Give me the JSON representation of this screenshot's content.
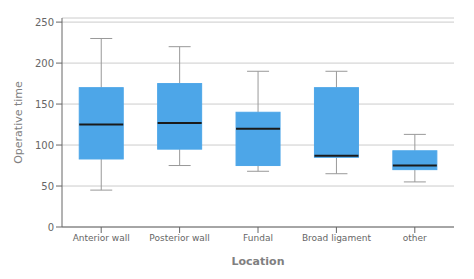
{
  "chart_data": {
    "type": "box",
    "categories": [
      "Anterior wall",
      "Posterior wall",
      "Fundal",
      "Broad ligament",
      "other"
    ],
    "boxes": [
      {
        "whislo": 45,
        "q1": 83,
        "med": 125,
        "q3": 170,
        "whishi": 230
      },
      {
        "whislo": 75,
        "q1": 95,
        "med": 127,
        "q3": 175,
        "whishi": 220
      },
      {
        "whislo": 68,
        "q1": 75,
        "med": 120,
        "q3": 140,
        "whishi": 190
      },
      {
        "whislo": 65,
        "q1": 85,
        "med": 87,
        "q3": 170,
        "whishi": 190
      },
      {
        "whislo": 55,
        "q1": 70,
        "med": 75,
        "q3": 93,
        "whishi": 113
      }
    ],
    "xlabel": "Location",
    "ylabel": "Operative time",
    "ylim": [
      0,
      255
    ],
    "yticks": [
      0,
      50,
      100,
      150,
      200,
      250
    ],
    "color": "#4da6e8",
    "grid": true
  }
}
